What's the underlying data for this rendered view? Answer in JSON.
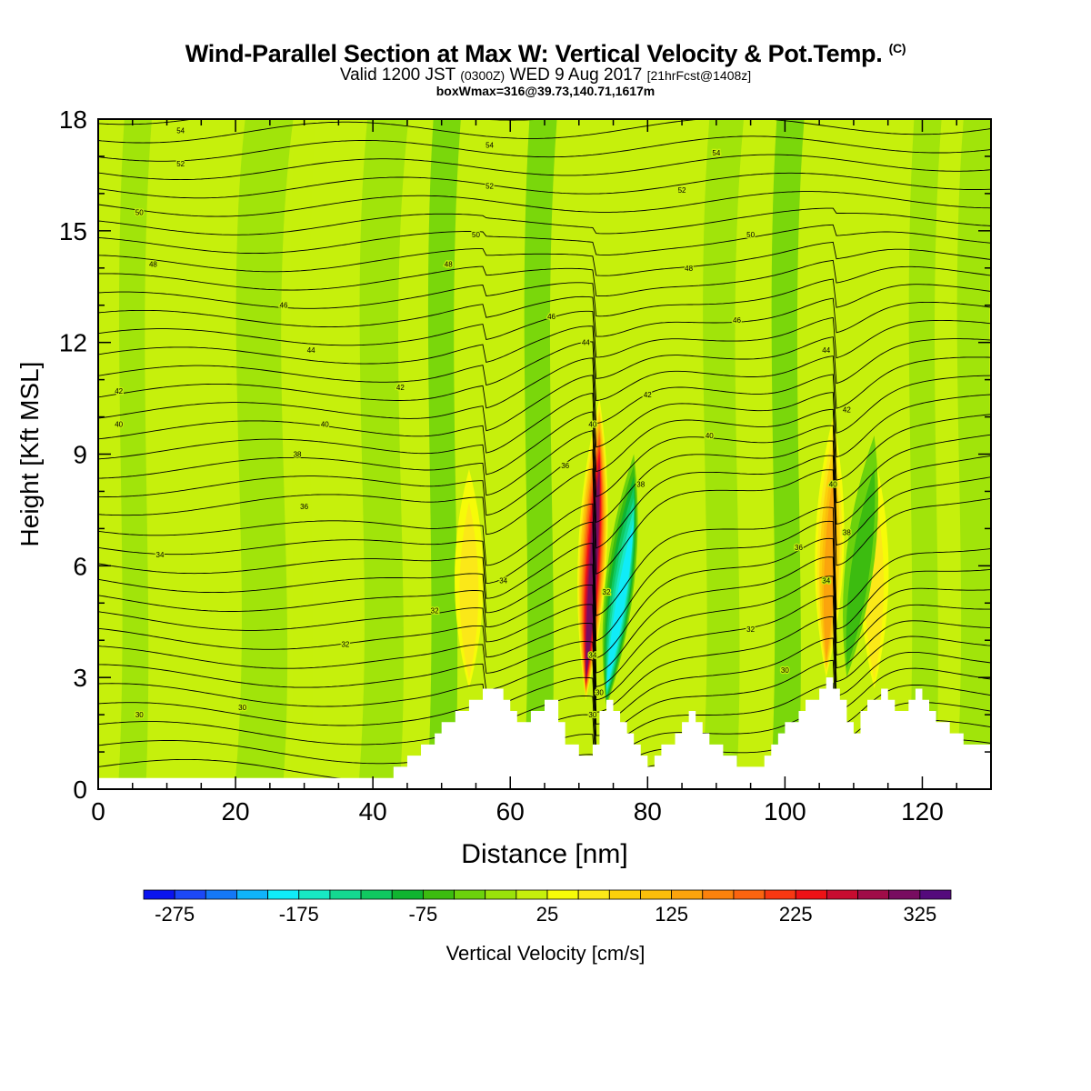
{
  "header": {
    "title": "Wind-Parallel Section at Max W: Vertical Velocity & Pot.Temp.",
    "copyright": "(C)",
    "valid_main": "Valid 1200 JST",
    "valid_utc": "(0300Z)",
    "valid_date": "WED 9 Aug 2017",
    "forecast": "[21hrFcst@1408z]",
    "box_info": "boxWmax=316@39.73,140.71,1617m"
  },
  "chart_data": {
    "type": "heatmap",
    "xlabel": "Distance [nm]",
    "ylabel": "Height [Kft MSL]",
    "xlim": [
      0,
      130
    ],
    "ylim": [
      0,
      18
    ],
    "xticks": [
      0,
      20,
      40,
      60,
      80,
      100,
      120
    ],
    "yticks": [
      0,
      3,
      6,
      9,
      12,
      15,
      18
    ],
    "colorbar": {
      "label": "Vertical Velocity [cm/s]",
      "tick_labels": [
        "-275",
        "-175",
        "-75",
        "25",
        "125",
        "225",
        "325"
      ],
      "tick_values": [
        -275,
        -175,
        -75,
        25,
        125,
        225,
        325
      ],
      "min": -300,
      "max": 350,
      "step": 25,
      "colors": [
        "#0a14f0",
        "#1c48f6",
        "#1478f6",
        "#10b4fa",
        "#10ecf8",
        "#18e8c4",
        "#14d890",
        "#10c860",
        "#10b430",
        "#3cbc10",
        "#6cd20c",
        "#9ae20a",
        "#c6f00c",
        "#f6fb08",
        "#fbe818",
        "#fdd00a",
        "#fbbe0a",
        "#fba40c",
        "#fb820c",
        "#fb6410",
        "#f83812",
        "#ee1216",
        "#c80c30",
        "#a00c48",
        "#780c60",
        "#540a7c"
      ]
    },
    "terrain_profile": {
      "x": [
        0,
        6,
        6,
        43,
        43,
        45,
        47,
        49,
        50,
        52,
        54,
        56,
        58,
        59,
        60,
        61,
        63,
        65,
        67,
        68,
        70,
        71,
        72,
        73,
        74,
        75,
        76,
        77,
        78,
        79,
        80,
        81,
        82,
        84,
        85,
        86,
        87,
        88,
        89,
        91,
        93,
        95,
        96,
        97,
        98,
        99,
        100,
        101,
        102,
        103,
        104,
        105,
        106,
        107,
        108,
        109,
        110,
        111,
        112,
        113,
        114,
        115,
        116,
        118,
        119,
        120,
        121,
        122,
        124,
        126,
        128,
        130
      ],
      "height_kft": [
        0.3,
        0.3,
        0.3,
        0.3,
        0.6,
        0.9,
        1.2,
        1.5,
        1.8,
        2.1,
        2.4,
        2.7,
        2.7,
        2.4,
        2.1,
        1.8,
        2.1,
        2.4,
        1.8,
        1.2,
        0.9,
        0.9,
        1.2,
        2.1,
        2.4,
        2.1,
        1.8,
        1.5,
        1.2,
        0.9,
        0.6,
        0.9,
        1.2,
        1.5,
        1.8,
        2.1,
        1.8,
        1.5,
        1.2,
        0.9,
        0.6,
        0.6,
        0.6,
        0.9,
        1.2,
        1.5,
        1.8,
        1.8,
        2.1,
        2.4,
        2.4,
        2.7,
        3.0,
        2.7,
        2.4,
        1.8,
        1.5,
        2.1,
        2.4,
        2.4,
        2.7,
        2.4,
        2.1,
        2.4,
        2.7,
        2.4,
        2.1,
        1.8,
        1.5,
        1.2,
        1.2,
        1.2
      ]
    },
    "updraft_cores": [
      {
        "x": 71,
        "w_max": 316,
        "x_top": 73,
        "y_bottom": 2.4,
        "y_top": 10.5
      },
      {
        "x": 106,
        "w_max": 150,
        "x_top": 107,
        "y_bottom": 3.0,
        "y_top": 10.0
      },
      {
        "x": 54,
        "w_max": 75,
        "x_top": 54,
        "y_bottom": 2.7,
        "y_top": 8.6
      },
      {
        "x": 113,
        "w_max": 75,
        "x_top": 113,
        "y_bottom": 2.7,
        "y_top": 9.0
      }
    ],
    "downdraft_cores": [
      {
        "x": 74,
        "w_min": -200,
        "x_top": 78,
        "y_bottom": 2.2,
        "y_top": 9.0
      },
      {
        "x": 109,
        "w_min": -75,
        "x_top": 113,
        "y_bottom": 3.0,
        "y_top": 9.5
      }
    ],
    "isentrope_labels": [
      {
        "x": 12,
        "y": 17.7,
        "text": "54"
      },
      {
        "x": 57,
        "y": 17.3,
        "text": "54"
      },
      {
        "x": 90,
        "y": 17.1,
        "text": "54"
      },
      {
        "x": 12,
        "y": 16.8,
        "text": "52"
      },
      {
        "x": 57,
        "y": 16.2,
        "text": "52"
      },
      {
        "x": 85,
        "y": 16.1,
        "text": "52"
      },
      {
        "x": 6,
        "y": 15.5,
        "text": "50"
      },
      {
        "x": 55,
        "y": 14.9,
        "text": "50"
      },
      {
        "x": 95,
        "y": 14.9,
        "text": "50"
      },
      {
        "x": 8,
        "y": 14.1,
        "text": "48"
      },
      {
        "x": 51,
        "y": 14.1,
        "text": "48"
      },
      {
        "x": 86,
        "y": 14.0,
        "text": "48"
      },
      {
        "x": 27,
        "y": 13.0,
        "text": "46"
      },
      {
        "x": 66,
        "y": 12.7,
        "text": "46"
      },
      {
        "x": 93,
        "y": 12.6,
        "text": "46"
      },
      {
        "x": 31,
        "y": 11.8,
        "text": "44"
      },
      {
        "x": 71,
        "y": 12.0,
        "text": "44"
      },
      {
        "x": 106,
        "y": 11.8,
        "text": "44"
      },
      {
        "x": 3,
        "y": 10.7,
        "text": "42"
      },
      {
        "x": 44,
        "y": 10.8,
        "text": "42"
      },
      {
        "x": 80,
        "y": 10.6,
        "text": "42"
      },
      {
        "x": 109,
        "y": 10.2,
        "text": "42"
      },
      {
        "x": 3,
        "y": 9.8,
        "text": "40"
      },
      {
        "x": 33,
        "y": 9.8,
        "text": "40"
      },
      {
        "x": 72,
        "y": 9.8,
        "text": "40"
      },
      {
        "x": 89,
        "y": 9.5,
        "text": "40"
      },
      {
        "x": 29,
        "y": 9.0,
        "text": "38"
      },
      {
        "x": 79,
        "y": 8.2,
        "text": "38"
      },
      {
        "x": 107,
        "y": 8.2,
        "text": "40"
      },
      {
        "x": 68,
        "y": 8.7,
        "text": "36"
      },
      {
        "x": 30,
        "y": 7.6,
        "text": "36"
      },
      {
        "x": 109,
        "y": 6.9,
        "text": "38"
      },
      {
        "x": 9,
        "y": 6.3,
        "text": "34"
      },
      {
        "x": 102,
        "y": 6.5,
        "text": "36"
      },
      {
        "x": 59,
        "y": 5.6,
        "text": "34"
      },
      {
        "x": 49,
        "y": 4.8,
        "text": "32"
      },
      {
        "x": 106,
        "y": 5.6,
        "text": "34"
      },
      {
        "x": 74,
        "y": 5.3,
        "text": "32"
      },
      {
        "x": 36,
        "y": 3.9,
        "text": "32"
      },
      {
        "x": 95,
        "y": 4.3,
        "text": "32"
      },
      {
        "x": 72,
        "y": 3.6,
        "text": "34"
      },
      {
        "x": 100,
        "y": 3.2,
        "text": "30"
      },
      {
        "x": 21,
        "y": 2.2,
        "text": "30"
      },
      {
        "x": 73,
        "y": 2.6,
        "text": "30"
      },
      {
        "x": 6,
        "y": 2.0,
        "text": "30"
      },
      {
        "x": 72,
        "y": 2.0,
        "text": "30"
      }
    ]
  }
}
